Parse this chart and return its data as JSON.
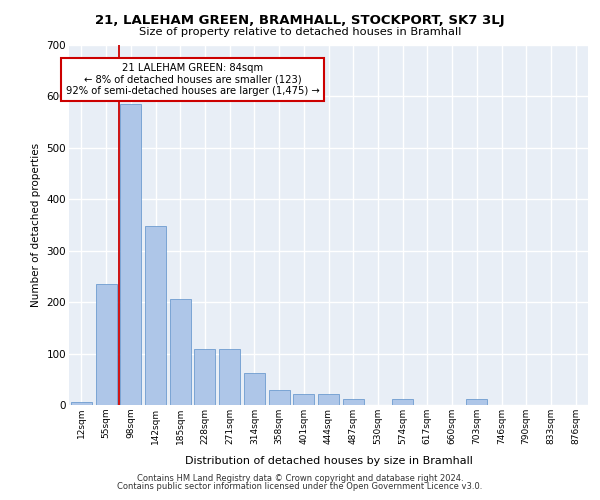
{
  "title1": "21, LALEHAM GREEN, BRAMHALL, STOCKPORT, SK7 3LJ",
  "title2": "Size of property relative to detached houses in Bramhall",
  "xlabel": "Distribution of detached houses by size in Bramhall",
  "ylabel": "Number of detached properties",
  "categories": [
    "12sqm",
    "55sqm",
    "98sqm",
    "142sqm",
    "185sqm",
    "228sqm",
    "271sqm",
    "314sqm",
    "358sqm",
    "401sqm",
    "444sqm",
    "487sqm",
    "530sqm",
    "574sqm",
    "617sqm",
    "660sqm",
    "703sqm",
    "746sqm",
    "790sqm",
    "833sqm",
    "876sqm"
  ],
  "values": [
    5,
    235,
    585,
    348,
    207,
    108,
    108,
    62,
    30,
    22,
    22,
    12,
    0,
    12,
    0,
    0,
    12,
    0,
    0,
    0,
    0
  ],
  "bar_color": "#aec6e8",
  "bar_edge_color": "#5b8fc9",
  "vline_x_index": 1.52,
  "vline_color": "#cc0000",
  "annotation_text": "21 LALEHAM GREEN: 84sqm\n← 8% of detached houses are smaller (123)\n92% of semi-detached houses are larger (1,475) →",
  "annotation_box_fc": "white",
  "annotation_box_ec": "#cc0000",
  "plot_bg": "#e8eef6",
  "grid_color": "white",
  "ylim": [
    0,
    700
  ],
  "yticks": [
    0,
    100,
    200,
    300,
    400,
    500,
    600,
    700
  ],
  "footer1": "Contains HM Land Registry data © Crown copyright and database right 2024.",
  "footer2": "Contains public sector information licensed under the Open Government Licence v3.0."
}
